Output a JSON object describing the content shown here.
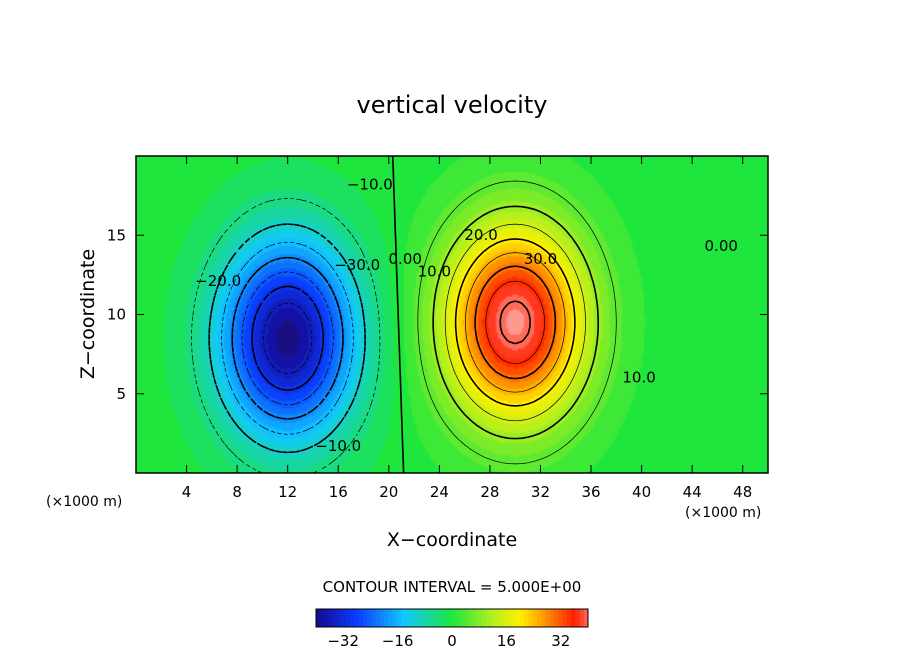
{
  "chart_data": {
    "type": "heatmap",
    "title": "vertical velocity",
    "xlabel": "X−coordinate",
    "ylabel": "Z−coordinate",
    "x_unit_left": "(×1000 m)",
    "x_unit_right": "(×1000 m)",
    "xlim": [
      0,
      50
    ],
    "ylim": [
      0,
      20
    ],
    "x_ticks": [
      4,
      8,
      12,
      16,
      20,
      24,
      28,
      32,
      36,
      40,
      44,
      48
    ],
    "y_ticks": [
      5,
      10,
      15
    ],
    "contour_interval_text": "CONTOUR INTERVAL = 5.000E+00",
    "colorbar": {
      "range": [
        -40,
        40
      ],
      "ticks": [
        -32,
        -16,
        0,
        16,
        32
      ],
      "tick_labels": [
        "−32",
        "−16",
        "0",
        "16",
        "32"
      ]
    },
    "fields": [
      {
        "kind": "downdraft",
        "x": 12,
        "z": 8.5,
        "peak": -40,
        "sx": 5.0,
        "sz": 5.8
      },
      {
        "kind": "updraft",
        "x": 30,
        "z": 9.5,
        "peak": 42,
        "sx": 5.2,
        "sz": 5.8
      }
    ],
    "contour_labels": [
      {
        "text": "−10.0",
        "x": 18.5,
        "z": 17.9
      },
      {
        "text": "−30.0",
        "x": 17.5,
        "z": 12.8
      },
      {
        "text": "−20.0",
        "x": 6.5,
        "z": 11.8
      },
      {
        "text": "−10.0",
        "x": 16.0,
        "z": 1.4
      },
      {
        "text": "0.00",
        "x": 21.3,
        "z": 13.2
      },
      {
        "text": "10.0",
        "x": 23.6,
        "z": 12.4
      },
      {
        "text": "20.0",
        "x": 27.3,
        "z": 14.7
      },
      {
        "text": "30.0",
        "x": 32.0,
        "z": 13.2
      },
      {
        "text": "10.0",
        "x": 39.8,
        "z": 5.7
      },
      {
        "text": "0.00",
        "x": 46.3,
        "z": 14.0
      }
    ]
  }
}
